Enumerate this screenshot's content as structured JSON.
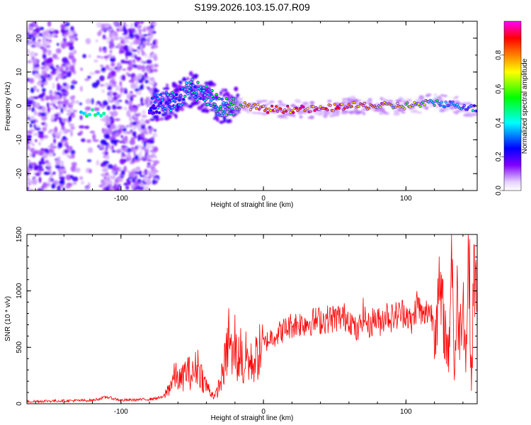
{
  "title": "S199.2026.103.15.07.R09",
  "chart_data": [
    {
      "type": "heatmap",
      "name": "spectrogram",
      "xlabel": "Height of straight line (km)",
      "ylabel": "Frequency (Hz)",
      "xlim": [
        -166,
        150
      ],
      "ylim": [
        -25,
        25
      ],
      "xticks": [
        -100,
        0,
        100
      ],
      "xtick_labels": [
        "-100",
        "0",
        "100"
      ],
      "yticks": [
        -20,
        -10,
        0,
        10,
        20
      ],
      "ytick_labels": [
        "-20",
        "-10",
        "0",
        "10",
        "20"
      ],
      "grid": false,
      "colorbar": {
        "label": "Normalized spectral amplitude",
        "range": [
          0,
          1
        ],
        "ticks": [
          0,
          0.2,
          0.4,
          0.6,
          0.8
        ],
        "tick_labels": [
          "0.0",
          "0.2",
          "0.4",
          "0.6",
          "0.8"
        ],
        "colors": [
          "#ffffff",
          "#8000ff",
          "#0000ff",
          "#00ffff",
          "#00ff00",
          "#ffff00",
          "#ff8000",
          "#ff0000",
          "#ff00ff"
        ]
      },
      "ridge": {
        "x": [
          -120,
          -90,
          -80,
          -70,
          -60,
          -50,
          -40,
          -30,
          -20,
          -10,
          0,
          10,
          20,
          40,
          60,
          80,
          100,
          120,
          140,
          150
        ],
        "freq": [
          -2,
          -1,
          0,
          1,
          2,
          5,
          3,
          0,
          0,
          0,
          -1,
          -1,
          -1,
          -1,
          0,
          0,
          0,
          1,
          0,
          -1
        ],
        "amplitude": [
          0.25,
          0.2,
          0.35,
          0.5,
          0.45,
          0.5,
          0.55,
          0.55,
          0.7,
          0.85,
          0.9,
          0.95,
          0.95,
          0.95,
          0.85,
          0.85,
          0.8,
          0.6,
          0.5,
          0.45
        ]
      }
    },
    {
      "type": "line",
      "name": "snr",
      "xlabel": "Height of straight line (km)",
      "ylabel": "SNR (10 * v/v)",
      "xlim": [
        -166,
        150
      ],
      "ylim": [
        0,
        1500
      ],
      "xticks": [
        -100,
        0,
        100
      ],
      "xtick_labels": [
        "-100",
        "0",
        "100"
      ],
      "yticks": [
        0,
        500,
        1000,
        1500
      ],
      "ytick_labels": [
        "0",
        "500",
        "1000",
        "1500"
      ],
      "grid": false,
      "color": "#ff0000",
      "series": [
        {
          "name": "SNR",
          "x": [
            -166,
            -150,
            -120,
            -110,
            -100,
            -80,
            -70,
            -66,
            -62,
            -58,
            -54,
            -50,
            -46,
            -42,
            -38,
            -34,
            -30,
            -26,
            -24,
            -22,
            -20,
            -18,
            -16,
            -14,
            -12,
            -10,
            -6,
            -2,
            2,
            6,
            10,
            20,
            30,
            40,
            50,
            60,
            66,
            70,
            74,
            78,
            82,
            86,
            90,
            96,
            100,
            104,
            108,
            112,
            116,
            120,
            124,
            128,
            130,
            132,
            134,
            136,
            138,
            140,
            142,
            144,
            146,
            148,
            150
          ],
          "y": [
            20,
            25,
            30,
            60,
            30,
            40,
            60,
            150,
            250,
            200,
            300,
            250,
            350,
            200,
            120,
            60,
            200,
            420,
            650,
            350,
            550,
            350,
            520,
            250,
            450,
            350,
            380,
            480,
            550,
            600,
            620,
            700,
            720,
            740,
            760,
            770,
            620,
            800,
            680,
            760,
            720,
            800,
            760,
            800,
            820,
            700,
            900,
            750,
            850,
            720,
            950,
            600,
            400,
            1500,
            250,
            900,
            600,
            1100,
            350,
            1450,
            150,
            1350,
            600
          ]
        }
      ]
    }
  ]
}
